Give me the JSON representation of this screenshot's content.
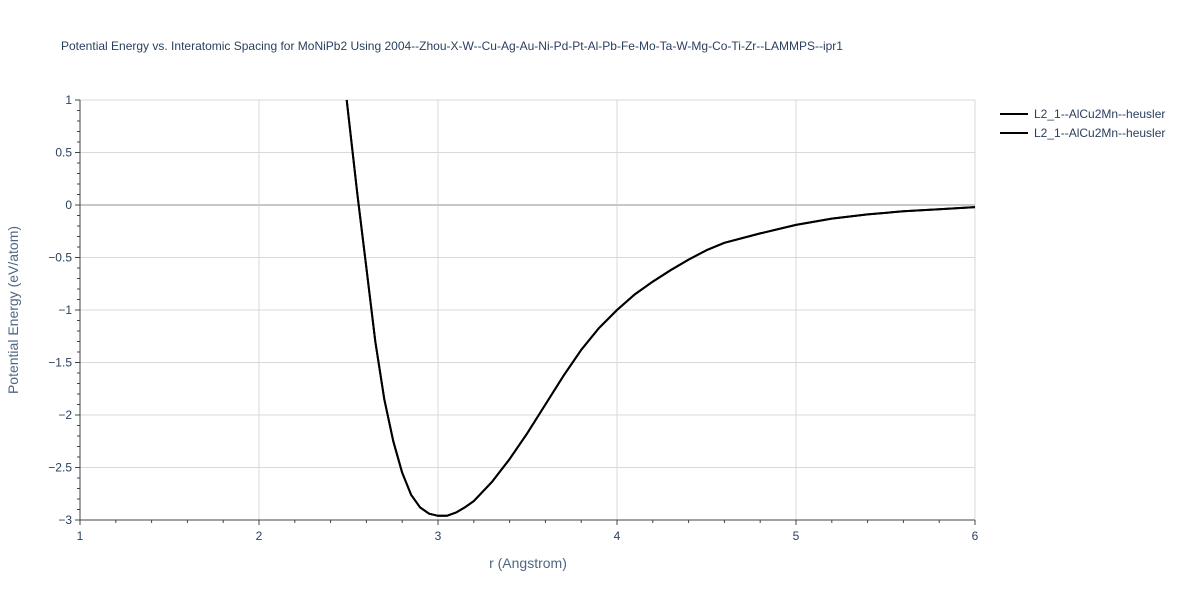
{
  "chart_data": {
    "type": "line",
    "title": "Potential Energy vs. Interatomic Spacing for MoNiPb2 Using 2004--Zhou-X-W--Cu-Ag-Au-Ni-Pd-Pt-Al-Pb-Fe-Mo-Ta-W-Mg-Co-Ti-Zr--LAMMPS--ipr1",
    "xlabel": "r (Angstrom)",
    "ylabel": "Potential Energy (eV/atom)",
    "xlim": [
      1,
      6
    ],
    "ylim": [
      -3,
      1
    ],
    "xticks": [
      1,
      2,
      3,
      4,
      5,
      6
    ],
    "yticks": [
      1,
      0.5,
      0,
      -0.5,
      -1,
      -1.5,
      -2,
      -2.5,
      -3
    ],
    "xtick_labels": [
      "1",
      "2",
      "3",
      "4",
      "5",
      "6"
    ],
    "ytick_labels": [
      "1",
      "0.5",
      "0",
      "−0.5",
      "−1",
      "−1.5",
      "−2",
      "−2.5",
      "−3"
    ],
    "grid": true,
    "legend_position": "top-right",
    "series": [
      {
        "name": "L2_1--AlCu2Mn--heusler",
        "color": "#000000",
        "x": [
          2.49,
          2.55,
          2.6,
          2.65,
          2.7,
          2.75,
          2.8,
          2.85,
          2.9,
          2.95,
          3.0,
          3.05,
          3.1,
          3.15,
          3.2,
          3.3,
          3.4,
          3.5,
          3.6,
          3.7,
          3.8,
          3.9,
          4.0,
          4.1,
          4.2,
          4.3,
          4.4,
          4.5,
          4.6,
          4.8,
          5.0,
          5.2,
          5.4,
          5.6,
          5.8,
          6.0
        ],
        "y": [
          1.0,
          0.1,
          -0.6,
          -1.3,
          -1.85,
          -2.25,
          -2.55,
          -2.76,
          -2.88,
          -2.94,
          -2.96,
          -2.96,
          -2.93,
          -2.88,
          -2.82,
          -2.64,
          -2.42,
          -2.17,
          -1.9,
          -1.63,
          -1.38,
          -1.17,
          -1.0,
          -0.85,
          -0.73,
          -0.62,
          -0.52,
          -0.43,
          -0.36,
          -0.27,
          -0.19,
          -0.13,
          -0.09,
          -0.06,
          -0.04,
          -0.02
        ]
      },
      {
        "name": "L2_1--AlCu2Mn--heusler",
        "color": "#000000",
        "x": [
          2.49,
          2.55,
          2.6,
          2.65,
          2.7,
          2.75,
          2.8,
          2.85,
          2.9,
          2.95,
          3.0,
          3.05,
          3.1,
          3.15,
          3.2,
          3.3,
          3.4,
          3.5,
          3.6,
          3.7,
          3.8,
          3.9,
          4.0,
          4.1,
          4.2,
          4.3,
          4.4,
          4.5,
          4.6,
          4.8,
          5.0,
          5.2,
          5.4,
          5.6,
          5.8,
          6.0
        ],
        "y": [
          1.0,
          0.1,
          -0.6,
          -1.3,
          -1.85,
          -2.25,
          -2.55,
          -2.76,
          -2.88,
          -2.94,
          -2.96,
          -2.96,
          -2.93,
          -2.88,
          -2.82,
          -2.64,
          -2.42,
          -2.17,
          -1.9,
          -1.63,
          -1.38,
          -1.17,
          -1.0,
          -0.85,
          -0.73,
          -0.62,
          -0.52,
          -0.43,
          -0.36,
          -0.27,
          -0.19,
          -0.13,
          -0.09,
          -0.06,
          -0.04,
          -0.02
        ]
      }
    ]
  }
}
